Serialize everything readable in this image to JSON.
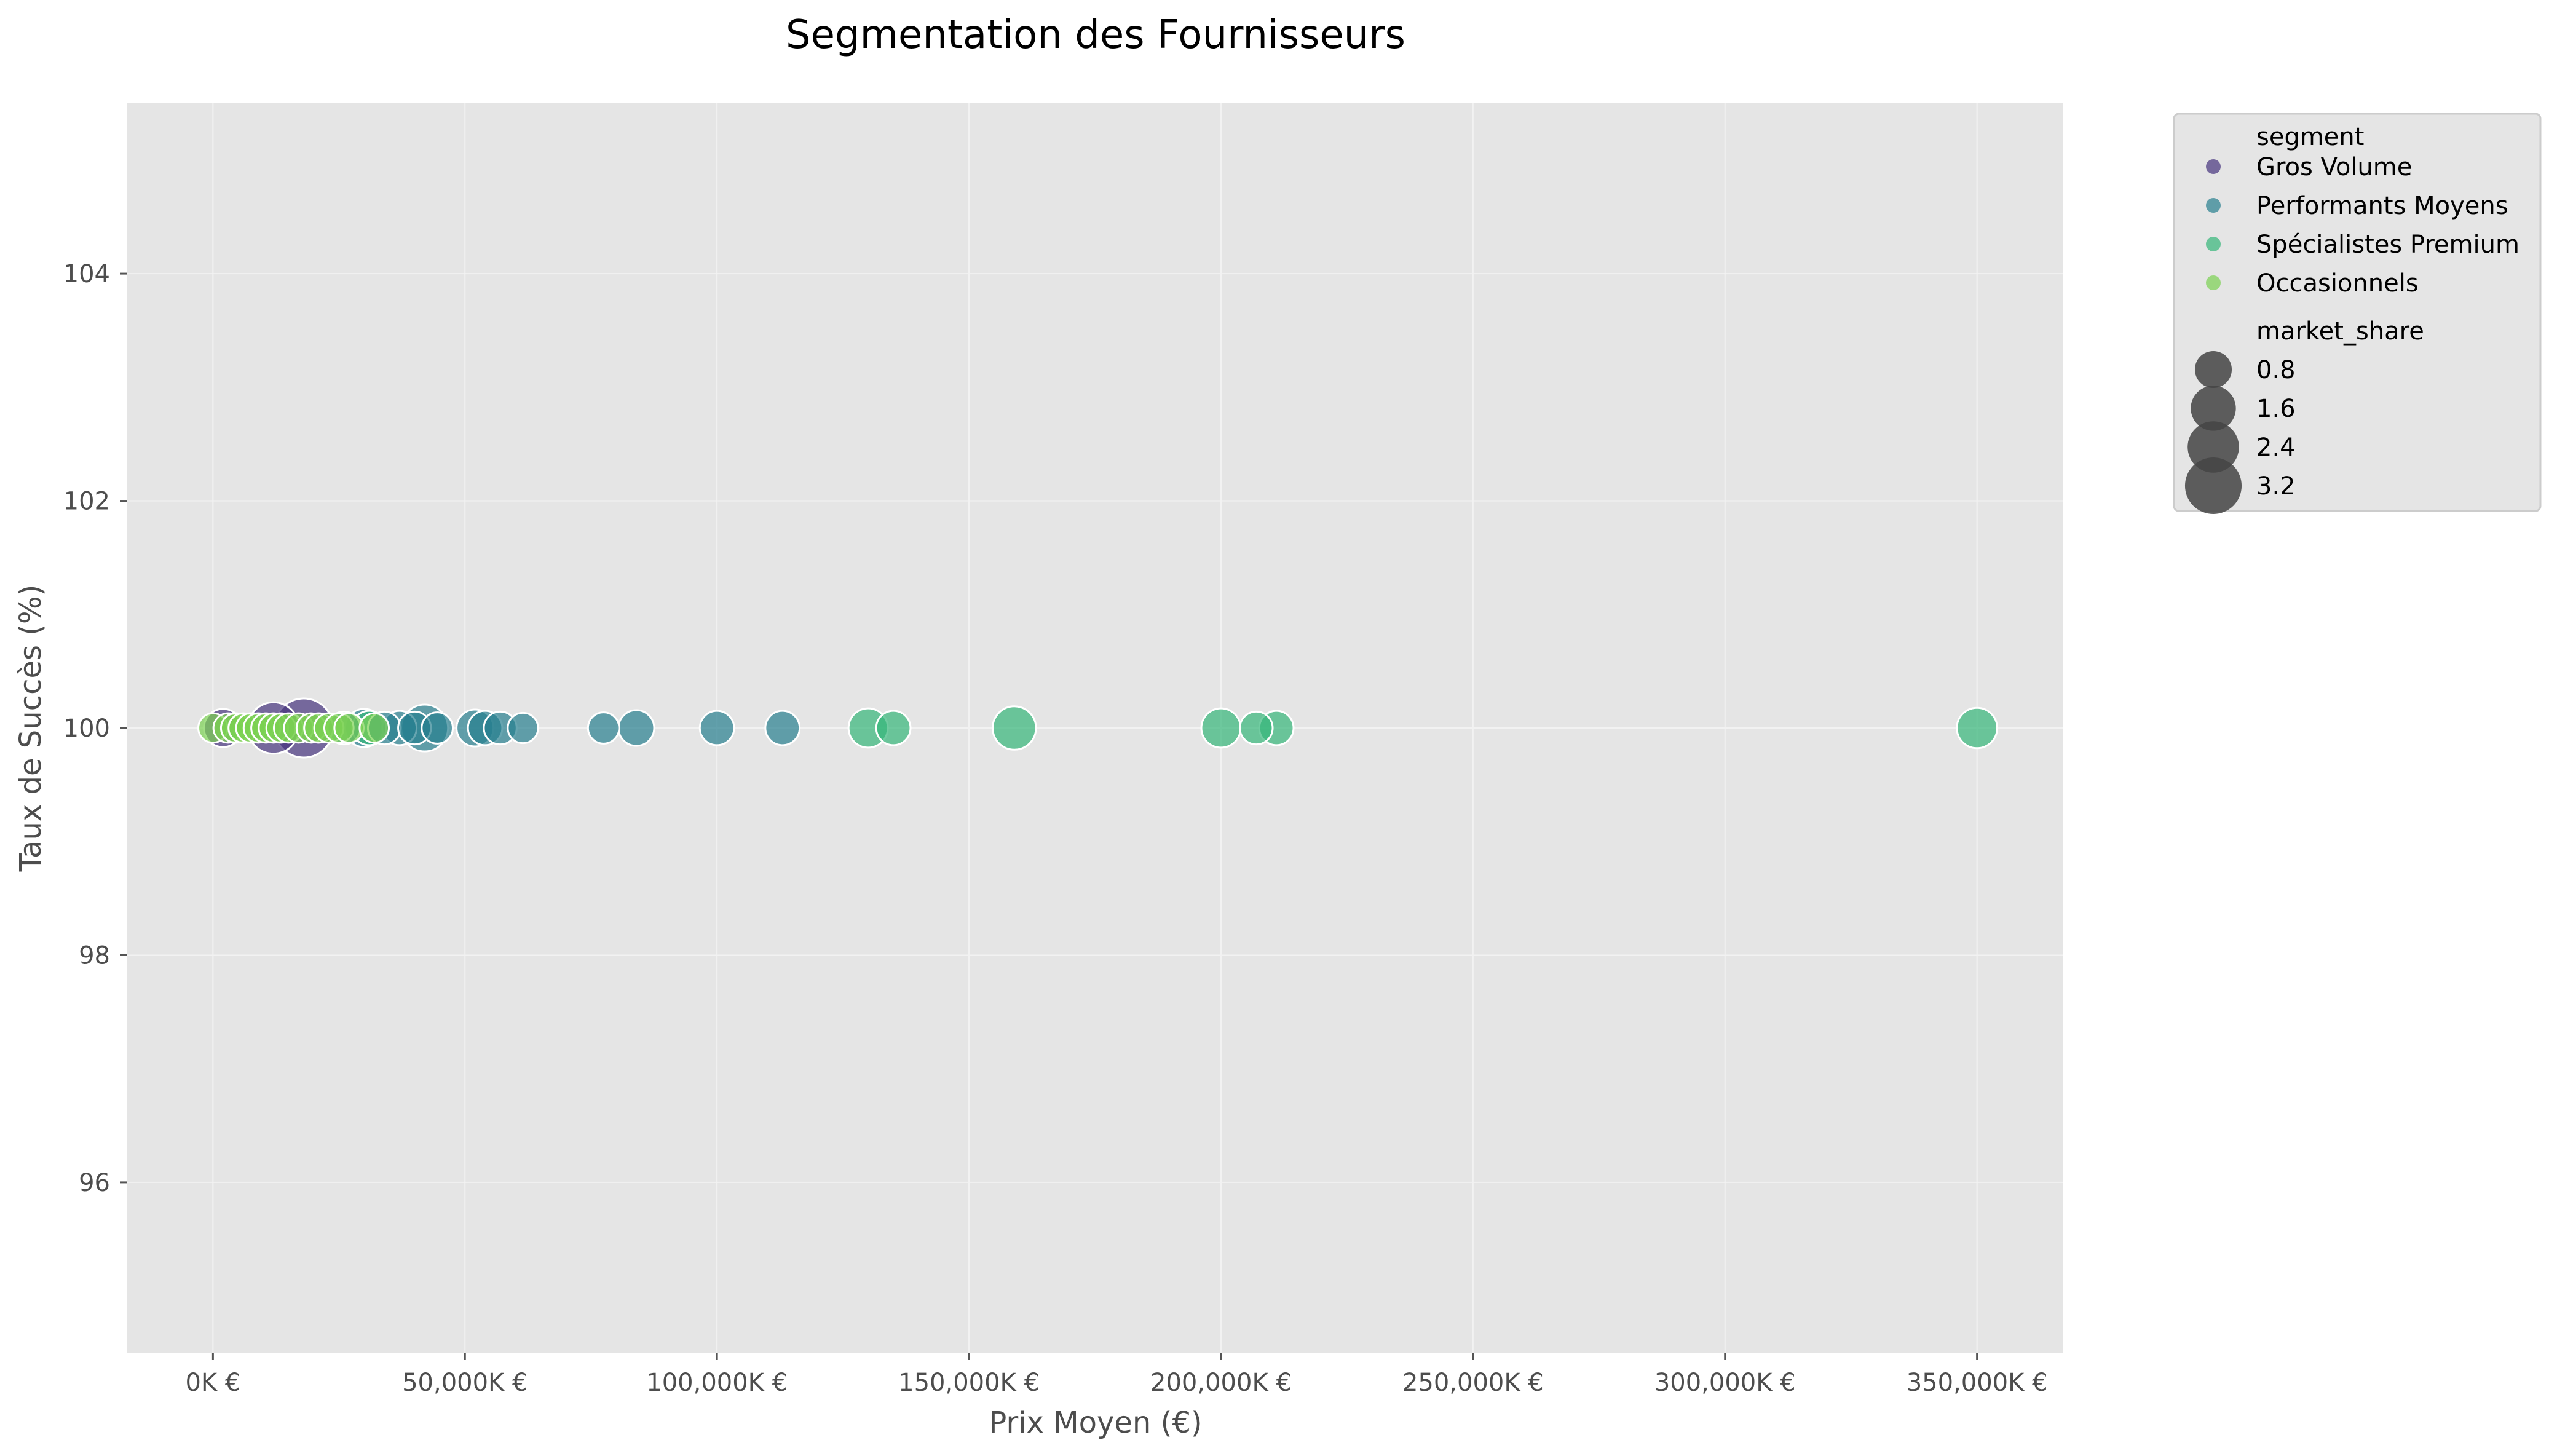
{
  "chart_data": {
    "type": "scatter",
    "title": "Segmentation des Fournisseurs",
    "xlabel": "Prix Moyen (€)",
    "ylabel": "Taux de Succès (%)",
    "xlim": [
      -17000,
      367000
    ],
    "ylim": [
      94.5,
      105.5
    ],
    "x_ticks": [
      0,
      50000,
      100000,
      150000,
      200000,
      250000,
      300000,
      350000
    ],
    "x_tick_labels": [
      "0K €",
      "50,000K €",
      "100,000K €",
      "150,000K €",
      "200,000K €",
      "250,000K €",
      "300,000K €",
      "350,000K €"
    ],
    "y_ticks": [
      96,
      98,
      100,
      102,
      104
    ],
    "y_tick_labels": [
      "96",
      "98",
      "100",
      "102",
      "104"
    ],
    "grid": true,
    "background": "#e5e5e5",
    "legend_position": "outside-top-right",
    "legend": {
      "hue_title": "segment",
      "size_title": "market_share",
      "size_entries": [
        {
          "label": "0.8",
          "value": 0.8
        },
        {
          "label": "1.6",
          "value": 1.6
        },
        {
          "label": "2.4",
          "value": 2.4
        },
        {
          "label": "3.2",
          "value": 3.2
        }
      ]
    },
    "series": [
      {
        "name": "Gros Volume",
        "color": "#46337e",
        "points": [
          {
            "x": 12000,
            "y": 100,
            "size": 2.4
          },
          {
            "x": 18000,
            "y": 100,
            "size": 3.6
          },
          {
            "x": 2000,
            "y": 100,
            "size": 0.9
          }
        ]
      },
      {
        "name": "Performants Moyens",
        "color": "#277f8e",
        "points": [
          {
            "x": 42000,
            "y": 100,
            "size": 1.8
          },
          {
            "x": 52000,
            "y": 100,
            "size": 0.8
          },
          {
            "x": 54000,
            "y": 100,
            "size": 0.6
          },
          {
            "x": 57000,
            "y": 100,
            "size": 0.5
          },
          {
            "x": 61500,
            "y": 100,
            "size": 0.35
          },
          {
            "x": 77500,
            "y": 100,
            "size": 0.4
          },
          {
            "x": 84000,
            "y": 100,
            "size": 0.7
          },
          {
            "x": 100000,
            "y": 100,
            "size": 0.6
          },
          {
            "x": 113000,
            "y": 100,
            "size": 0.6
          },
          {
            "x": 30000,
            "y": 100,
            "size": 0.9
          },
          {
            "x": 34000,
            "y": 100,
            "size": 0.5
          },
          {
            "x": 37000,
            "y": 100,
            "size": 0.6
          },
          {
            "x": 40000,
            "y": 100,
            "size": 0.5
          },
          {
            "x": 44500,
            "y": 100,
            "size": 0.4
          },
          {
            "x": 26000,
            "y": 100,
            "size": 0.5
          }
        ]
      },
      {
        "name": "Spécialistes Premium",
        "color": "#35b779",
        "points": [
          {
            "x": 130000,
            "y": 100,
            "size": 1.0
          },
          {
            "x": 135000,
            "y": 100,
            "size": 0.6
          },
          {
            "x": 159000,
            "y": 100,
            "size": 1.4
          },
          {
            "x": 200000,
            "y": 100,
            "size": 1.0
          },
          {
            "x": 207000,
            "y": 100,
            "size": 0.5
          },
          {
            "x": 211000,
            "y": 100,
            "size": 0.6
          },
          {
            "x": 350000,
            "y": 100,
            "size": 1.1
          },
          {
            "x": 31000,
            "y": 100,
            "size": 0.6
          }
        ]
      },
      {
        "name": "Occasionnels",
        "color": "#7ad151",
        "points": [
          {
            "x": 0,
            "y": 100,
            "size": 0.3
          },
          {
            "x": 3000,
            "y": 100,
            "size": 0.3
          },
          {
            "x": 4500,
            "y": 100,
            "size": 0.3
          },
          {
            "x": 6000,
            "y": 100,
            "size": 0.3
          },
          {
            "x": 7500,
            "y": 100,
            "size": 0.3
          },
          {
            "x": 9000,
            "y": 100,
            "size": 0.3
          },
          {
            "x": 10500,
            "y": 100,
            "size": 0.3
          },
          {
            "x": 12000,
            "y": 100,
            "size": 0.3
          },
          {
            "x": 13500,
            "y": 100,
            "size": 0.3
          },
          {
            "x": 15000,
            "y": 100,
            "size": 0.3
          },
          {
            "x": 17000,
            "y": 100,
            "size": 0.3
          },
          {
            "x": 19500,
            "y": 100,
            "size": 0.3
          },
          {
            "x": 21000,
            "y": 100,
            "size": 0.3
          },
          {
            "x": 23000,
            "y": 100,
            "size": 0.3
          },
          {
            "x": 25000,
            "y": 100,
            "size": 0.3
          },
          {
            "x": 27000,
            "y": 100,
            "size": 0.3
          },
          {
            "x": 32000,
            "y": 100,
            "size": 0.3
          }
        ]
      }
    ]
  }
}
